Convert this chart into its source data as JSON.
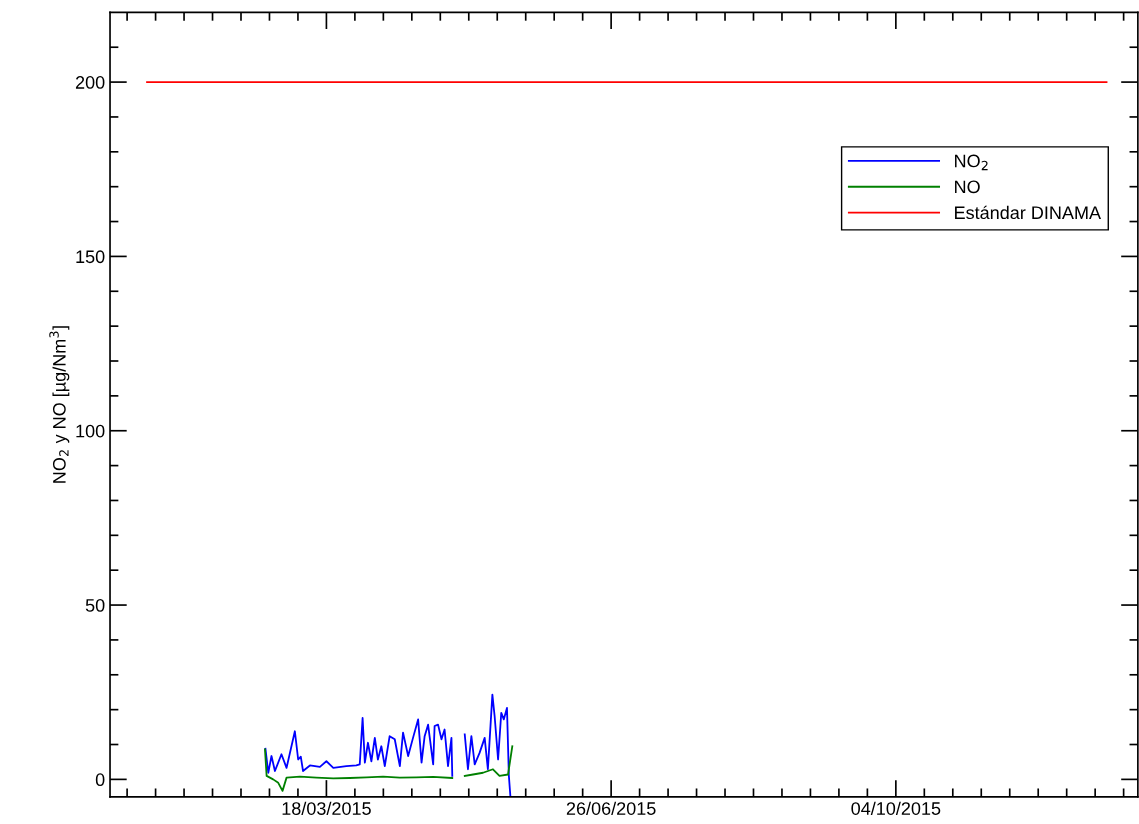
{
  "chart_data": {
    "type": "line",
    "ylabel": "NO$_{2}$ y NO [µg/Nm$^{3}$]",
    "legend": "top right",
    "grid": false,
    "xlim": [
      "2015-01-01",
      "2015-12-28"
    ],
    "xticks": [
      {
        "value": "2015-01-07",
        "label": null
      },
      {
        "value": "2015-01-17",
        "label": null
      },
      {
        "value": "2015-01-27",
        "label": null
      },
      {
        "value": "2015-02-06",
        "label": null
      },
      {
        "value": "2015-02-16",
        "label": null
      },
      {
        "value": "2015-02-26",
        "label": null
      },
      {
        "value": "2015-03-08",
        "label": null
      },
      {
        "value": "2015-03-18",
        "label": "18/03/2015"
      },
      {
        "value": "2015-03-28",
        "label": null
      },
      {
        "value": "2015-04-07",
        "label": null
      },
      {
        "value": "2015-04-17",
        "label": null
      },
      {
        "value": "2015-04-27",
        "label": null
      },
      {
        "value": "2015-05-07",
        "label": null
      },
      {
        "value": "2015-05-17",
        "label": null
      },
      {
        "value": "2015-05-27",
        "label": null
      },
      {
        "value": "2015-06-06",
        "label": null
      },
      {
        "value": "2015-06-16",
        "label": null
      },
      {
        "value": "2015-06-26",
        "label": "26/06/2015"
      },
      {
        "value": "2015-07-06",
        "label": null
      },
      {
        "value": "2015-07-16",
        "label": null
      },
      {
        "value": "2015-07-26",
        "label": null
      },
      {
        "value": "2015-08-05",
        "label": null
      },
      {
        "value": "2015-08-15",
        "label": null
      },
      {
        "value": "2015-08-25",
        "label": null
      },
      {
        "value": "2015-09-04",
        "label": null
      },
      {
        "value": "2015-09-14",
        "label": null
      },
      {
        "value": "2015-09-24",
        "label": null
      },
      {
        "value": "2015-10-04",
        "label": "04/10/2015"
      },
      {
        "value": "2015-10-14",
        "label": null
      },
      {
        "value": "2015-10-24",
        "label": null
      },
      {
        "value": "2015-11-03",
        "label": null
      },
      {
        "value": "2015-11-13",
        "label": null
      },
      {
        "value": "2015-11-23",
        "label": null
      },
      {
        "value": "2015-12-03",
        "label": null
      },
      {
        "value": "2015-12-13",
        "label": null
      },
      {
        "value": "2015-12-23",
        "label": null
      }
    ],
    "ylim": [
      -5,
      220
    ],
    "yticks": [
      0,
      {
        "value": 10,
        "label": null
      },
      {
        "value": 20,
        "label": null
      },
      {
        "value": 30,
        "label": null
      },
      {
        "value": 40,
        "label": null
      },
      50,
      {
        "value": 60,
        "label": null
      },
      {
        "value": 70,
        "label": null
      },
      {
        "value": 80,
        "label": null
      },
      {
        "value": 90,
        "label": null
      },
      100,
      {
        "value": 110,
        "label": null
      },
      {
        "value": 120,
        "label": null
      },
      {
        "value": 130,
        "label": null
      },
      {
        "value": 140,
        "label": null
      },
      150,
      {
        "value": 160,
        "label": null
      },
      {
        "value": 170,
        "label": null
      },
      {
        "value": 180,
        "label": null
      },
      {
        "value": 190,
        "label": null
      },
      200,
      {
        "value": 210,
        "label": null
      }
    ],
    "series": [
      {
        "name": "NO$_{2}$",
        "color": "#0000ff",
        "x": [
          "2015-02-24T14:00",
          "2015-02-25T14:00",
          "2015-02-26T17:00",
          "2015-02-27T22:00",
          "2015-03-02T05:00",
          "2015-03-04T00:00",
          "2015-03-06T22:00",
          "2015-03-08T02:00",
          "2015-03-09T00:00",
          "2015-03-09T19:00",
          "2015-03-12T05:00",
          "2015-03-15T17:00",
          "2015-03-18T00:00",
          "2015-03-20T10:00",
          "2015-03-25T00:00",
          "2015-03-28T12:00",
          "2015-03-29T17:00",
          "2015-03-30T17:00",
          "2015-03-31T12:00",
          "2015-04-01T14:00",
          "2015-04-02T19:00",
          "2015-04-04T00:00",
          "2015-04-05T02:00",
          "2015-04-06T07:00",
          "2015-04-07T12:00",
          "2015-04-09T05:00",
          "2015-04-11T00:00",
          "2015-04-12T19:00",
          "2015-04-13T22:00",
          "2015-04-15T17:00",
          "2015-04-17T10:00",
          "2015-04-19T05:00",
          "2015-04-20T10:00",
          "2015-04-21T12:00",
          "2015-04-22T17:00",
          "2015-04-24T12:00",
          "2015-04-25T00:00",
          "2015-04-26T05:00",
          "2015-04-27T10:00",
          "2015-04-28T12:00",
          "2015-04-29T17:00",
          "2015-04-30T22:00",
          "2015-05-01T05:00",
          "2015-05-03T00:00",
          "2015-05-05T14:00",
          "2015-05-06T17:00",
          "2015-05-07T22:00",
          "2015-05-09T02:00",
          "2015-05-10T19:00",
          "2015-05-12T14:00",
          "2015-05-13T17:00",
          "2015-05-15T07:00",
          "2015-05-16T02:00",
          "2015-05-17T07:00",
          "2015-05-18T10:00",
          "2015-05-19T07:00",
          "2015-05-20T10:00",
          "2015-05-21T02:00",
          "2015-05-21T14:00"
        ],
        "values": [
          8.8,
          1.9,
          6.7,
          2.4,
          7.2,
          3.3,
          13.8,
          5.7,
          6.5,
          2.4,
          4.0,
          3.6,
          5.2,
          3.3,
          3.8,
          4.0,
          4.3,
          17.6,
          4.8,
          10.5,
          5.2,
          11.9,
          5.7,
          9.5,
          3.8,
          12.4,
          11.5,
          3.8,
          13.4,
          6.7,
          11.9,
          17.2,
          4.8,
          12.4,
          15.7,
          4.3,
          15.3,
          15.7,
          11.5,
          14.3,
          3.8,
          11.9,
          1.0,
          null,
          12.9,
          2.9,
          12.4,
          4.3,
          7.6,
          11.9,
          2.9,
          24.3,
          18.1,
          5.7,
          19.1,
          17.2,
          20.5,
          1.0,
          -4.5
        ]
      },
      {
        "name": "NO",
        "color": "#008000",
        "x": [
          "2015-02-24T10:00",
          "2015-02-25T00:00",
          "2015-02-27T07:00",
          "2015-03-01T02:00",
          "2015-03-02T14:00",
          "2015-03-04T00:00",
          "2015-03-08T17:00",
          "2015-03-14T12:00",
          "2015-03-20T10:00",
          "2015-03-26T05:00",
          "2015-04-01T02:00",
          "2015-04-06T22:00",
          "2015-04-12T19:00",
          "2015-04-18T14:00",
          "2015-04-24T12:00",
          "2015-05-01T05:00",
          "2015-05-03T00:00",
          "2015-05-05T14:00",
          "2015-05-08T12:00",
          "2015-05-12T00:00",
          "2015-05-15T12:00",
          "2015-05-17T19:00",
          "2015-05-20T19:00",
          "2015-05-22T07:00"
        ],
        "values": [
          8.6,
          1.0,
          0,
          -1.0,
          -3.3,
          0.5,
          0.8,
          0.5,
          0.3,
          0.4,
          0.6,
          0.8,
          0.5,
          0.6,
          0.7,
          0.4,
          null,
          1.0,
          1.4,
          1.9,
          2.9,
          1.0,
          1.4,
          9.5
        ]
      },
      {
        "name": "Estándar DINAMA",
        "color": "#ff0000",
        "x": [
          "2015-01-14",
          "2015-12-17"
        ],
        "values": [
          200,
          200
        ]
      }
    ]
  }
}
